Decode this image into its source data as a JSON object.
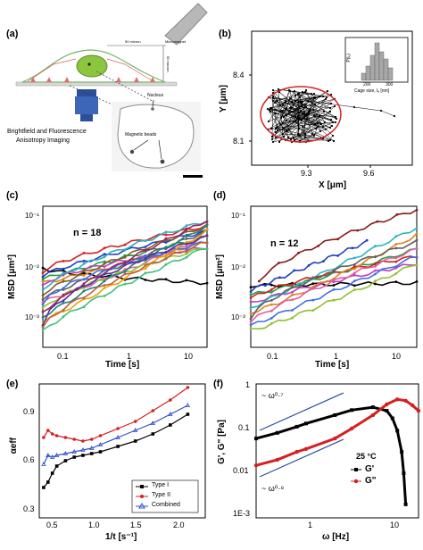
{
  "figure": {
    "panels": [
      {
        "id": "a",
        "label": "(a)",
        "ruler_label_top": "50 micron",
        "ruler_label_right": "50 micron",
        "probe_label": "Micromagnet",
        "nucleus_label": "Nucleus",
        "beads_label": "Magnetic beads",
        "imaging_caption_line1": "Brightfield and Fluorescence",
        "imaging_caption_line2": "Anisotropy Imaging"
      },
      {
        "id": "b",
        "label": "(b)",
        "xlabel": "X [μm]",
        "ylabel": "Y [μm]",
        "xticks": [
          "9.3",
          "9.6"
        ],
        "yticks": [
          "8.4",
          "8.1"
        ],
        "inset": {
          "ylabel": "P(lₑ)",
          "xlabel": "Cage size, lₑ [nm]",
          "xticks": [
            "200",
            "300"
          ]
        }
      },
      {
        "id": "c",
        "label": "(c)",
        "annotation": "n = 18",
        "xlabel": "Time [s]",
        "ylabel": "MSD [μm²]",
        "xticks": [
          "0.1",
          "1",
          "10"
        ],
        "yticks": [
          "10⁻¹",
          "10⁻²",
          "10⁻³"
        ]
      },
      {
        "id": "d",
        "label": "(d)",
        "annotation": "n = 12",
        "xlabel": "Time [s]",
        "ylabel": "MSD [μm²]",
        "xticks": [
          "0.1",
          "1",
          "10"
        ],
        "yticks": [
          "10⁻¹",
          "10⁻²",
          "10⁻³"
        ]
      },
      {
        "id": "e",
        "label": "(e)",
        "xlabel": "1/t [s⁻¹]",
        "ylabel": "αeff",
        "xticks": [
          "0.5",
          "1.0",
          "1.5",
          "2.0"
        ],
        "yticks": [
          "0.9",
          "0.6",
          "0.3"
        ],
        "legend": [
          "Type I",
          "Type II",
          "Combined"
        ]
      },
      {
        "id": "f",
        "label": "(f)",
        "xlabel": "ω [Hz]",
        "ylabel": "G', G\" [Pa]",
        "xticks": [
          "1",
          "10"
        ],
        "yticks": [
          "1",
          "0.1",
          "0.01",
          "1E-3"
        ],
        "slope_top": "~ ω⁰·⁷",
        "slope_bottom": "~ ω⁰·⁸",
        "temperature": "25 °C",
        "legend": [
          "G'",
          "G\""
        ]
      }
    ]
  },
  "chart_data": [
    {
      "type": "line",
      "panel": "e",
      "xlabel": "1/t [s⁻¹]",
      "ylabel": "αeff",
      "xlim": [
        0.3,
        2.2
      ],
      "ylim": [
        0.25,
        1.0
      ],
      "series": [
        {
          "name": "Type I",
          "color": "#000000",
          "x": [
            0.35,
            0.4,
            0.45,
            0.5,
            0.6,
            0.7,
            0.8,
            0.9,
            1.0,
            1.2,
            1.4,
            1.6,
            1.8,
            2.0
          ],
          "y": [
            0.42,
            0.45,
            0.5,
            0.54,
            0.57,
            0.59,
            0.6,
            0.61,
            0.62,
            0.65,
            0.68,
            0.72,
            0.77,
            0.83
          ]
        },
        {
          "name": "Type II",
          "color": "#d42020",
          "x": [
            0.35,
            0.4,
            0.45,
            0.5,
            0.6,
            0.7,
            0.8,
            0.9,
            1.0,
            1.2,
            1.4,
            1.6,
            1.8,
            2.0
          ],
          "y": [
            0.7,
            0.74,
            0.72,
            0.71,
            0.7,
            0.69,
            0.68,
            0.69,
            0.71,
            0.75,
            0.79,
            0.85,
            0.91,
            0.98
          ]
        },
        {
          "name": "Combined",
          "color": "#3050d0",
          "x": [
            0.35,
            0.4,
            0.45,
            0.5,
            0.6,
            0.7,
            0.8,
            0.9,
            1.0,
            1.2,
            1.4,
            1.6,
            1.8,
            2.0
          ],
          "y": [
            0.55,
            0.6,
            0.59,
            0.6,
            0.61,
            0.62,
            0.63,
            0.64,
            0.66,
            0.7,
            0.74,
            0.78,
            0.83,
            0.88
          ]
        }
      ]
    },
    {
      "type": "line",
      "panel": "f",
      "xlabel": "ω [Hz]",
      "ylabel": "G', G\" [Pa]",
      "xscale": "log",
      "yscale": "log",
      "xlim": [
        0.3,
        15
      ],
      "ylim": [
        0.001,
        1
      ],
      "series": [
        {
          "name": "G'",
          "color": "#000000",
          "x": [
            0.3,
            0.5,
            0.8,
            1,
            2,
            3,
            5,
            7,
            8,
            9,
            10,
            10.5,
            11
          ],
          "y": [
            0.06,
            0.08,
            0.11,
            0.13,
            0.2,
            0.26,
            0.3,
            0.25,
            0.17,
            0.09,
            0.03,
            0.01,
            0.002
          ]
        },
        {
          "name": "G\"",
          "color": "#d42020",
          "x": [
            0.3,
            0.5,
            0.8,
            1,
            2,
            3,
            5,
            7,
            9,
            11,
            13,
            15
          ],
          "y": [
            0.015,
            0.02,
            0.03,
            0.035,
            0.06,
            0.1,
            0.2,
            0.35,
            0.45,
            0.42,
            0.33,
            0.25
          ]
        }
      ]
    }
  ]
}
